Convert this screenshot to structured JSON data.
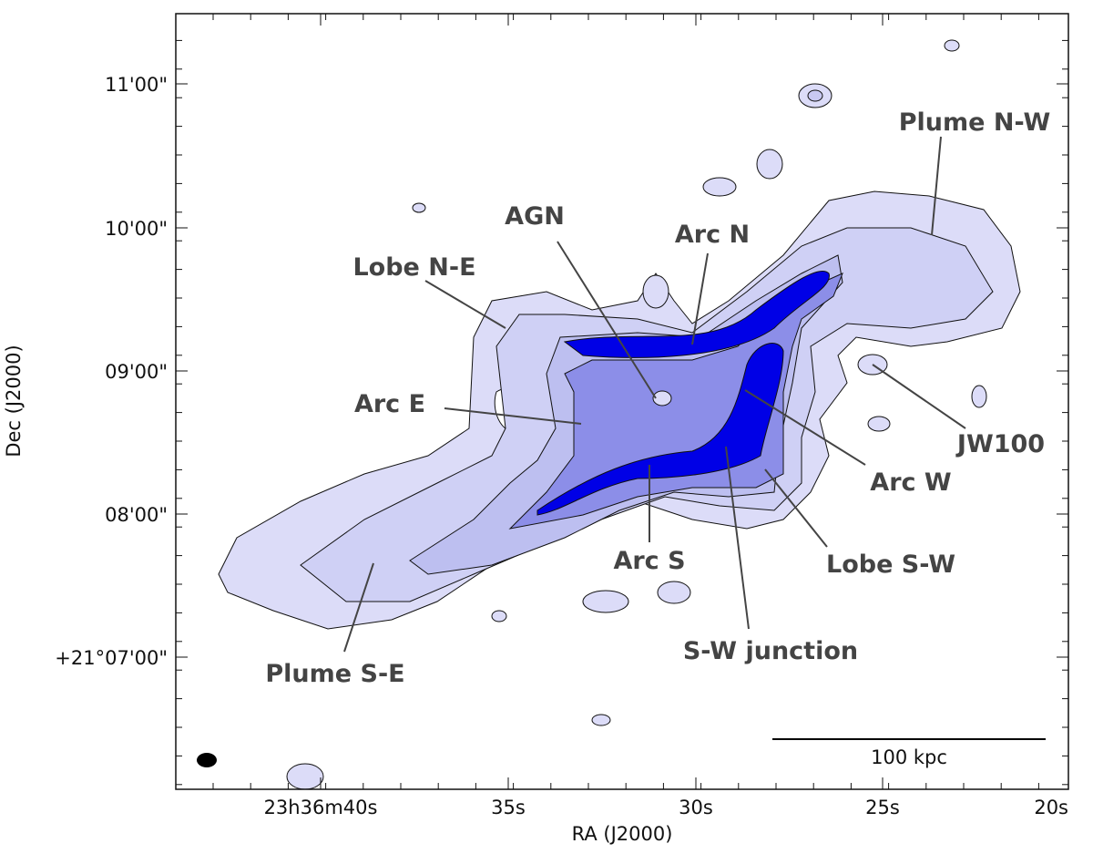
{
  "axes": {
    "x_label": "RA (J2000)",
    "y_label": "Dec (J2000)",
    "x_ticks": [
      "23h36m40s",
      "35s",
      "30s",
      "25s",
      "20s"
    ],
    "y_ticks": [
      "11'00\"",
      "10'00\"",
      "09'00\"",
      "08'00\"",
      "+21°07'00\""
    ]
  },
  "annotations": [
    "Plume N-W",
    "AGN",
    "Arc N",
    "Lobe N-E",
    "Arc E",
    "JW100",
    "Arc W",
    "Arc S",
    "Lobe S-W",
    "S-W junction",
    "Plume S-E"
  ],
  "scale_bar": "100 kpc"
}
